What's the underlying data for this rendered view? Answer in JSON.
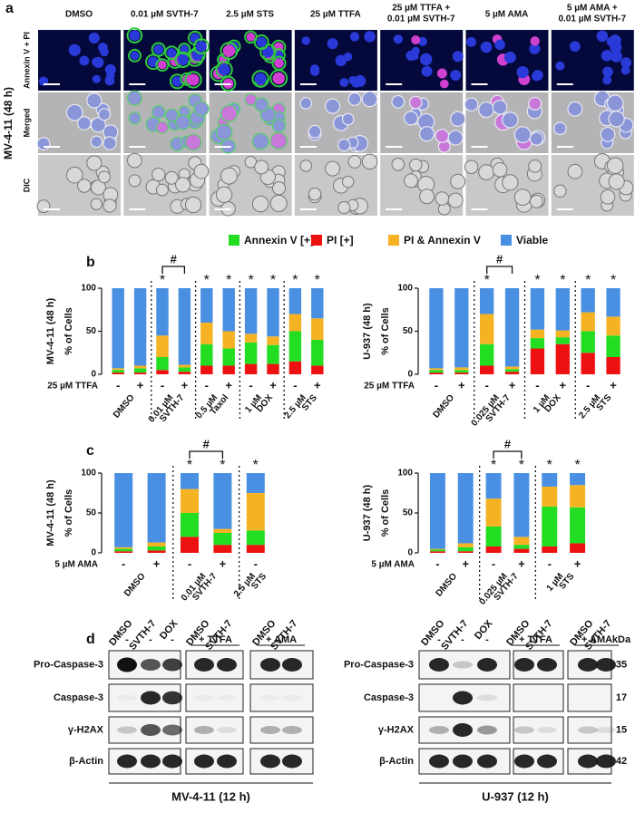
{
  "panel_labels": [
    "a",
    "b",
    "c",
    "d"
  ],
  "panel_a": {
    "side_label": "MV-4-11 (48 h)",
    "columns": [
      [
        "DMSO"
      ],
      [
        "0.01 µM SVTH-7"
      ],
      [
        "2.5 µM STS"
      ],
      [
        "25 µM TTFA"
      ],
      [
        "25 µM TTFA +",
        "0.01 µM SVTH-7"
      ],
      [
        "5 µM AMA"
      ],
      [
        "5 µM AMA +",
        "0.01 µM SVTH-7"
      ]
    ],
    "rows": [
      "Annexin V + PI",
      "Merged",
      "DIC"
    ]
  },
  "legend": [
    {
      "name": "Annexin V [+]",
      "color": "#22dd22"
    },
    {
      "name": "PI [+]",
      "color": "#ee1111"
    },
    {
      "name": "PI & Annexin V",
      "color": "#f5b324"
    },
    {
      "name": "Viable",
      "color": "#4a90e2"
    }
  ],
  "chart_data": [
    {
      "type": "bar",
      "stacked": true,
      "side_label": "MV-4-11 (48 h)",
      "ylabel": "% of Cells",
      "ylim": [
        0,
        100
      ],
      "yticks": [
        0,
        50,
        100
      ],
      "row_label": "25 µM TTFA",
      "groups": [
        {
          "label": [
            "DMSO"
          ],
          "categories": [
            "-",
            "+"
          ]
        },
        {
          "label": [
            "0.01 µM",
            "SVTH-7"
          ],
          "categories": [
            "-",
            "+"
          ]
        },
        {
          "label": [
            "0.5 µM",
            "Taxol"
          ],
          "categories": [
            "-",
            "+"
          ]
        },
        {
          "label": [
            "1 µM",
            "DOX"
          ],
          "categories": [
            "-",
            "+"
          ]
        },
        {
          "label": [
            "2.5 µM",
            "STS"
          ],
          "categories": [
            "-",
            "+"
          ]
        }
      ],
      "series": [
        {
          "values": [
            3,
            5,
            15,
            5,
            25,
            20,
            25,
            22,
            35,
            30
          ]
        },
        {
          "values": [
            2,
            2,
            5,
            3,
            10,
            10,
            12,
            12,
            15,
            10
          ]
        },
        {
          "values": [
            2,
            3,
            25,
            3,
            25,
            20,
            10,
            10,
            20,
            25
          ]
        },
        {
          "values": [
            93,
            90,
            55,
            89,
            40,
            50,
            53,
            56,
            30,
            35
          ]
        }
      ],
      "annotations": [
        {
          "label": "*",
          "bar": 2
        },
        {
          "label": "*",
          "bar": 4
        },
        {
          "label": "*",
          "bar": 5
        },
        {
          "label": "*",
          "bar": 6
        },
        {
          "label": "*",
          "bar": 7
        },
        {
          "label": "*",
          "bar": 8
        },
        {
          "label": "*",
          "bar": 9
        }
      ],
      "bracket": {
        "label": "#",
        "bars": [
          2,
          3
        ]
      }
    },
    {
      "type": "bar",
      "stacked": true,
      "side_label": "U-937 (48 h)",
      "ylabel": "% of Cells",
      "ylim": [
        0,
        100
      ],
      "yticks": [
        0,
        50,
        100
      ],
      "row_label": "25 µM TTFA",
      "groups": [
        {
          "label": [
            "DMSO"
          ],
          "categories": [
            "-",
            "+"
          ]
        },
        {
          "label": [
            "0.025 µM",
            "SVTH-7"
          ],
          "categories": [
            "-",
            "+"
          ]
        },
        {
          "label": [
            "1 µM",
            "DOX"
          ],
          "categories": [
            "-",
            "+"
          ]
        },
        {
          "label": [
            "2.5 µM",
            "STS"
          ],
          "categories": [
            "-",
            "+"
          ]
        }
      ],
      "series": [
        {
          "values": [
            3,
            3,
            25,
            3,
            12,
            8,
            25,
            25
          ]
        },
        {
          "values": [
            2,
            2,
            10,
            3,
            30,
            35,
            25,
            20
          ]
        },
        {
          "values": [
            2,
            3,
            35,
            3,
            10,
            8,
            22,
            22
          ]
        },
        {
          "values": [
            93,
            92,
            30,
            91,
            48,
            49,
            28,
            33
          ]
        }
      ],
      "annotations": [
        {
          "label": "*",
          "bar": 2
        },
        {
          "label": "*",
          "bar": 4
        },
        {
          "label": "*",
          "bar": 5
        },
        {
          "label": "*",
          "bar": 6
        },
        {
          "label": "*",
          "bar": 7
        }
      ],
      "bracket": {
        "label": "#",
        "bars": [
          2,
          3
        ]
      }
    },
    {
      "type": "bar",
      "stacked": true,
      "side_label": "MV-4-11 (48 h)",
      "ylabel": "% of Cells",
      "ylim": [
        0,
        100
      ],
      "yticks": [
        0,
        50,
        100
      ],
      "row_label": "5 µM AMA",
      "groups": [
        {
          "label": [
            "DMSO"
          ],
          "categories": [
            "-",
            "+"
          ]
        },
        {
          "label": [
            "0.01 µM",
            "SVTH-7"
          ],
          "categories": [
            "-",
            "+"
          ]
        },
        {
          "label": [
            "2.5 µM",
            "STS"
          ],
          "categories": [
            "-"
          ]
        }
      ],
      "series": [
        {
          "values": [
            3,
            5,
            30,
            15,
            18
          ]
        },
        {
          "values": [
            2,
            3,
            20,
            10,
            10
          ]
        },
        {
          "values": [
            2,
            5,
            30,
            5,
            47
          ]
        },
        {
          "values": [
            93,
            87,
            20,
            70,
            25
          ]
        }
      ],
      "annotations": [
        {
          "label": "*",
          "bar": 2
        },
        {
          "label": "*",
          "bar": 3
        },
        {
          "label": "*",
          "bar": 4
        }
      ],
      "bracket": {
        "label": "#",
        "bars": [
          2,
          3
        ]
      }
    },
    {
      "type": "bar",
      "stacked": true,
      "side_label": "U-937 (48 h)",
      "ylabel": "% of Cells",
      "ylim": [
        0,
        100
      ],
      "yticks": [
        0,
        50,
        100
      ],
      "row_label": "5 µM AMA",
      "groups": [
        {
          "label": [
            "DMSO"
          ],
          "categories": [
            "-",
            "+"
          ]
        },
        {
          "label": [
            "0.025 µM",
            "SVTH-7"
          ],
          "categories": [
            "-",
            "+"
          ]
        },
        {
          "label": [
            "1 µM",
            "STS"
          ],
          "categories": [
            "-",
            "+"
          ]
        }
      ],
      "series": [
        {
          "values": [
            2,
            5,
            25,
            5,
            50,
            45
          ]
        },
        {
          "values": [
            2,
            2,
            8,
            5,
            8,
            12
          ]
        },
        {
          "values": [
            1,
            5,
            35,
            10,
            25,
            28
          ]
        },
        {
          "values": [
            95,
            88,
            32,
            80,
            17,
            15
          ]
        }
      ],
      "annotations": [
        {
          "label": "*",
          "bar": 2
        },
        {
          "label": "*",
          "bar": 3
        },
        {
          "label": "*",
          "bar": 4
        },
        {
          "label": "*",
          "bar": 5
        }
      ],
      "bracket": {
        "label": "#",
        "bars": [
          2,
          3
        ]
      }
    }
  ],
  "panel_d": {
    "kda_label": "kDa",
    "kda": [
      35,
      17,
      15,
      42
    ],
    "blots": [
      {
        "lanes": [
          "DMSO",
          "SVTH-7",
          "DOX",
          "DMSO",
          "SVTH-7",
          "DMSO",
          "SVTH-7"
        ],
        "treatments": [
          "-",
          "-",
          "-",
          "+ TTFA",
          "+ AMA"
        ],
        "rows": [
          "Pro-Caspase-3",
          "Caspase-3",
          "γ-H2AX",
          "β-Actin"
        ],
        "caption": "MV-4-11 (12 h)"
      },
      {
        "lanes": [
          "DMSO",
          "SVTH-7",
          "DOX",
          "DMSO",
          "SVTH-7",
          "DMSO",
          "SVTH-7"
        ],
        "treatments": [
          "-",
          "-",
          "-",
          "+ TTFA",
          "+ AMA"
        ],
        "rows": [
          "Pro-Caspase-3",
          "Caspase-3",
          "γ-H2AX",
          "β-Actin"
        ],
        "caption": "U-937 (12 h)"
      }
    ]
  }
}
